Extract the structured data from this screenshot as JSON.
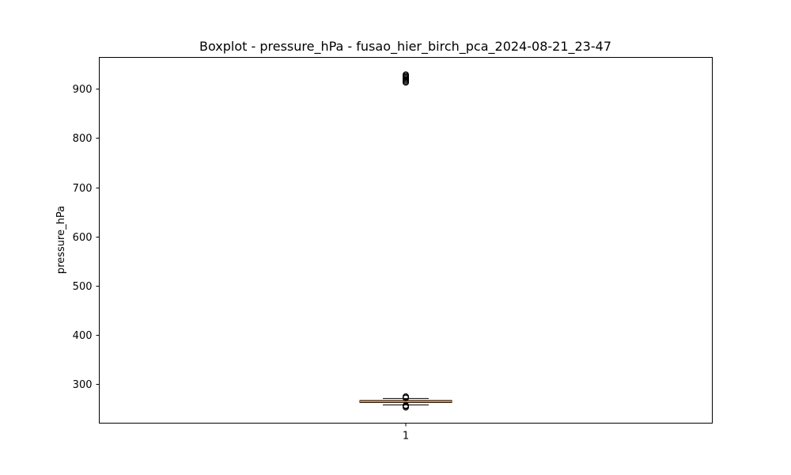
{
  "chart_data": {
    "type": "boxplot",
    "title": "Boxplot - pressure_hPa - fusao_hier_birch_pca_2024-08-21_23-47",
    "xlabel": "",
    "ylabel": "pressure_hPa",
    "categories": [
      "1"
    ],
    "ylim": [
      221,
      964
    ],
    "yticks": [
      300,
      400,
      500,
      600,
      700,
      800,
      900
    ],
    "grid": false,
    "boxes": [
      {
        "category": "1",
        "whisker_low": 258,
        "q1": 263,
        "median": 265,
        "q3": 267,
        "whisker_high": 271,
        "outliers": [
          253,
          255,
          256,
          257,
          272,
          274,
          275,
          913,
          915,
          917,
          919,
          921,
          923,
          925,
          927,
          929
        ]
      }
    ],
    "colors": {
      "box_edge": "#000000",
      "median": "#ff7f0e",
      "outlier_edge": "#000000"
    }
  }
}
